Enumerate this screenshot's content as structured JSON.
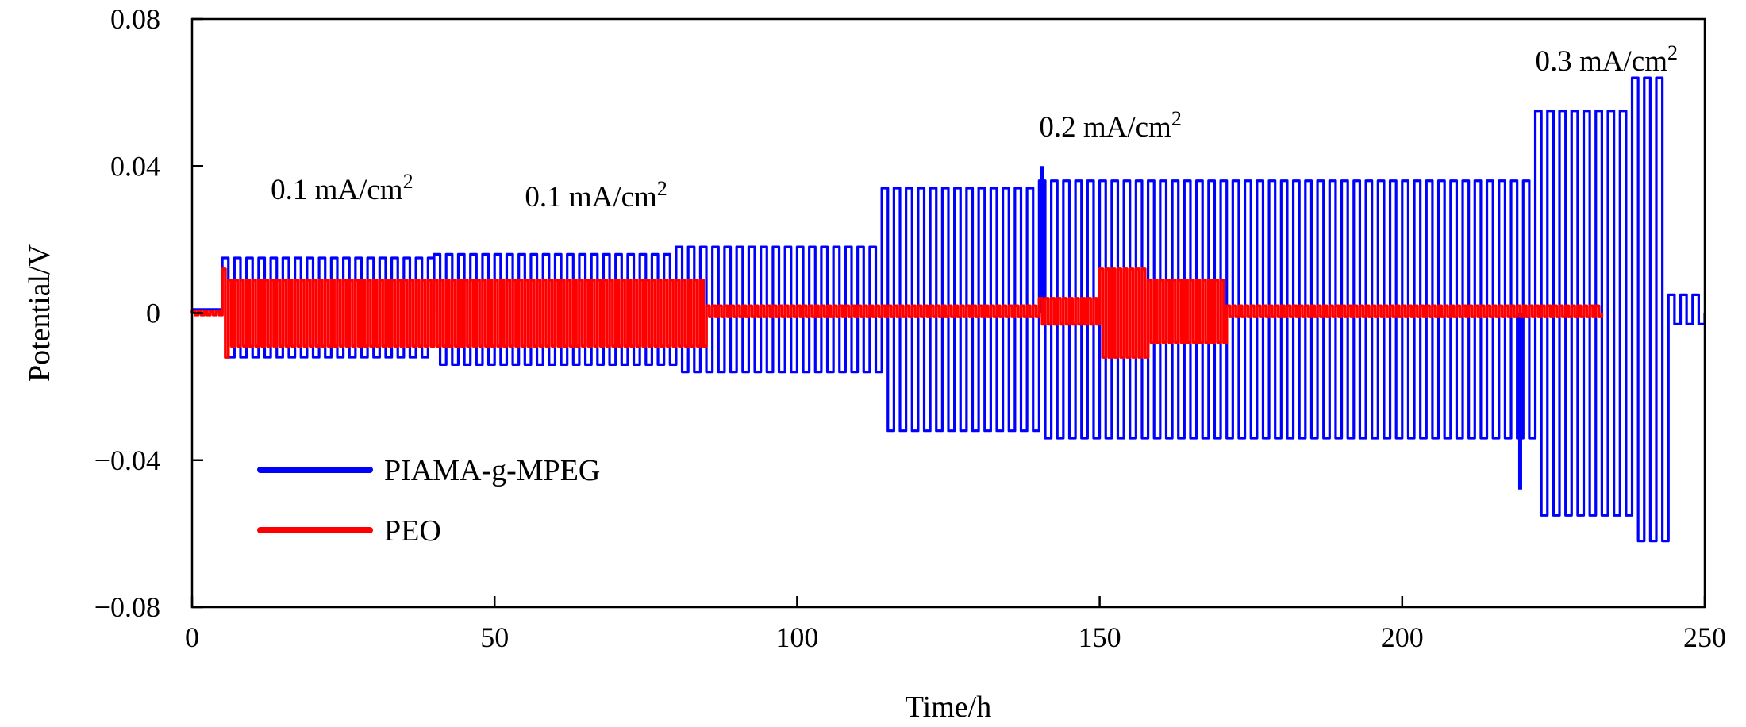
{
  "chart_data": {
    "type": "line",
    "title": "",
    "xlabel": "Time/h",
    "ylabel": "Potential/V",
    "xlim": [
      0,
      250
    ],
    "ylim": [
      -0.08,
      0.08
    ],
    "xticks": [
      0,
      50,
      100,
      150,
      200,
      250
    ],
    "xtick_labels": [
      "0",
      "50",
      "100",
      "150",
      "200",
      "250"
    ],
    "yticks": [
      0.08,
      0.04,
      0,
      -0.04,
      -0.08
    ],
    "ytick_labels": [
      "0.08",
      "0.04",
      "0",
      "−0.04",
      "−0.08"
    ],
    "grid": false,
    "legend_position": "bottom-left",
    "series": [
      {
        "name": "PIAMA-g-MPEG",
        "color": "#0000ff",
        "cycle_period_h": 2,
        "segments": [
          {
            "t_start": 0,
            "t_end": 5,
            "amp_pos": 0,
            "amp_neg": 0,
            "offset": 0.001
          },
          {
            "t_start": 5,
            "t_end": 40,
            "amp_pos": 0.015,
            "amp_neg": -0.012
          },
          {
            "t_start": 40,
            "t_end": 80,
            "amp_pos": 0.016,
            "amp_neg": -0.014
          },
          {
            "t_start": 80,
            "t_end": 114,
            "amp_pos": 0.018,
            "amp_neg": -0.016
          },
          {
            "t_start": 114,
            "t_end": 140,
            "amp_pos": 0.034,
            "amp_neg": -0.032
          },
          {
            "t_start": 140,
            "t_end": 222,
            "amp_pos": 0.036,
            "amp_neg": -0.034
          },
          {
            "t_start": 222,
            "t_end": 238,
            "amp_pos": 0.055,
            "amp_neg": -0.055
          },
          {
            "t_start": 238,
            "t_end": 244,
            "amp_pos": 0.064,
            "amp_neg": -0.062
          },
          {
            "t_start": 244,
            "t_end": 250,
            "amp_pos": 0.005,
            "amp_neg": -0.003
          }
        ],
        "spikes": [
          {
            "t": 140.5,
            "value": 0.04
          },
          {
            "t": 219.5,
            "value": -0.048
          }
        ]
      },
      {
        "name": "PEO",
        "color": "#ff0000",
        "cycle_period_h": 1,
        "segments": [
          {
            "t_start": 0,
            "t_end": 5,
            "amp_pos": 0.0005,
            "amp_neg": -0.0005
          },
          {
            "t_start": 5,
            "t_end": 6,
            "amp_pos": 0.012,
            "amp_neg": -0.012
          },
          {
            "t_start": 6,
            "t_end": 85,
            "amp_pos": 0.009,
            "amp_neg": -0.009
          },
          {
            "t_start": 85,
            "t_end": 140,
            "amp_pos": 0.002,
            "amp_neg": -0.001
          },
          {
            "t_start": 140,
            "t_end": 150,
            "amp_pos": 0.004,
            "amp_neg": -0.003
          },
          {
            "t_start": 150,
            "t_end": 158,
            "amp_pos": 0.012,
            "amp_neg": -0.012
          },
          {
            "t_start": 158,
            "t_end": 171,
            "amp_pos": 0.009,
            "amp_neg": -0.008
          },
          {
            "t_start": 171,
            "t_end": 233,
            "amp_pos": 0.002,
            "amp_neg": -0.001
          }
        ],
        "spikes": []
      }
    ],
    "annotations": [
      {
        "text": "0.1 mA/cm",
        "sup": "2",
        "x": 13,
        "y": 0.031
      },
      {
        "text": "0.1 mA/cm",
        "sup": "2",
        "x": 55,
        "y": 0.029
      },
      {
        "text": "0.2 mA/cm",
        "sup": "2",
        "x": 140,
        "y": 0.048
      },
      {
        "text": "0.3 mA/cm",
        "sup": "2",
        "x": 222,
        "y": 0.066
      }
    ]
  }
}
